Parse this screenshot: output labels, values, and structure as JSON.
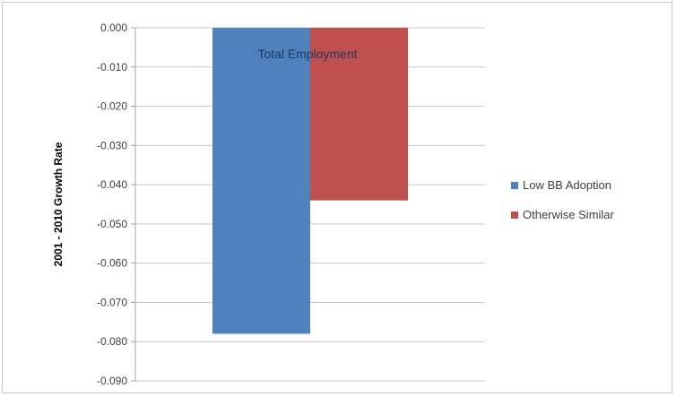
{
  "chart_data": {
    "type": "bar",
    "categories": [
      ""
    ],
    "series": [
      {
        "name": "Low BB Adoption",
        "values": [
          -0.078
        ],
        "color": "#4f81bd"
      },
      {
        "name": "Otherwise Similar",
        "values": [
          -0.044
        ],
        "color": "#c0504d"
      }
    ],
    "annotation": "Total Employment",
    "ylabel": "2001 - 2010 Growth Rate",
    "ylim": [
      -0.09,
      0.0
    ],
    "yticks": [
      0.0,
      -0.01,
      -0.02,
      -0.03,
      -0.04,
      -0.05,
      -0.06,
      -0.07,
      -0.08,
      -0.09
    ],
    "ytick_labels": [
      "0.000",
      "-0.010",
      "-0.020",
      "-0.030",
      "-0.040",
      "-0.050",
      "-0.060",
      "-0.070",
      "-0.080",
      "-0.090"
    ],
    "grid": true,
    "legend_position": "right"
  }
}
